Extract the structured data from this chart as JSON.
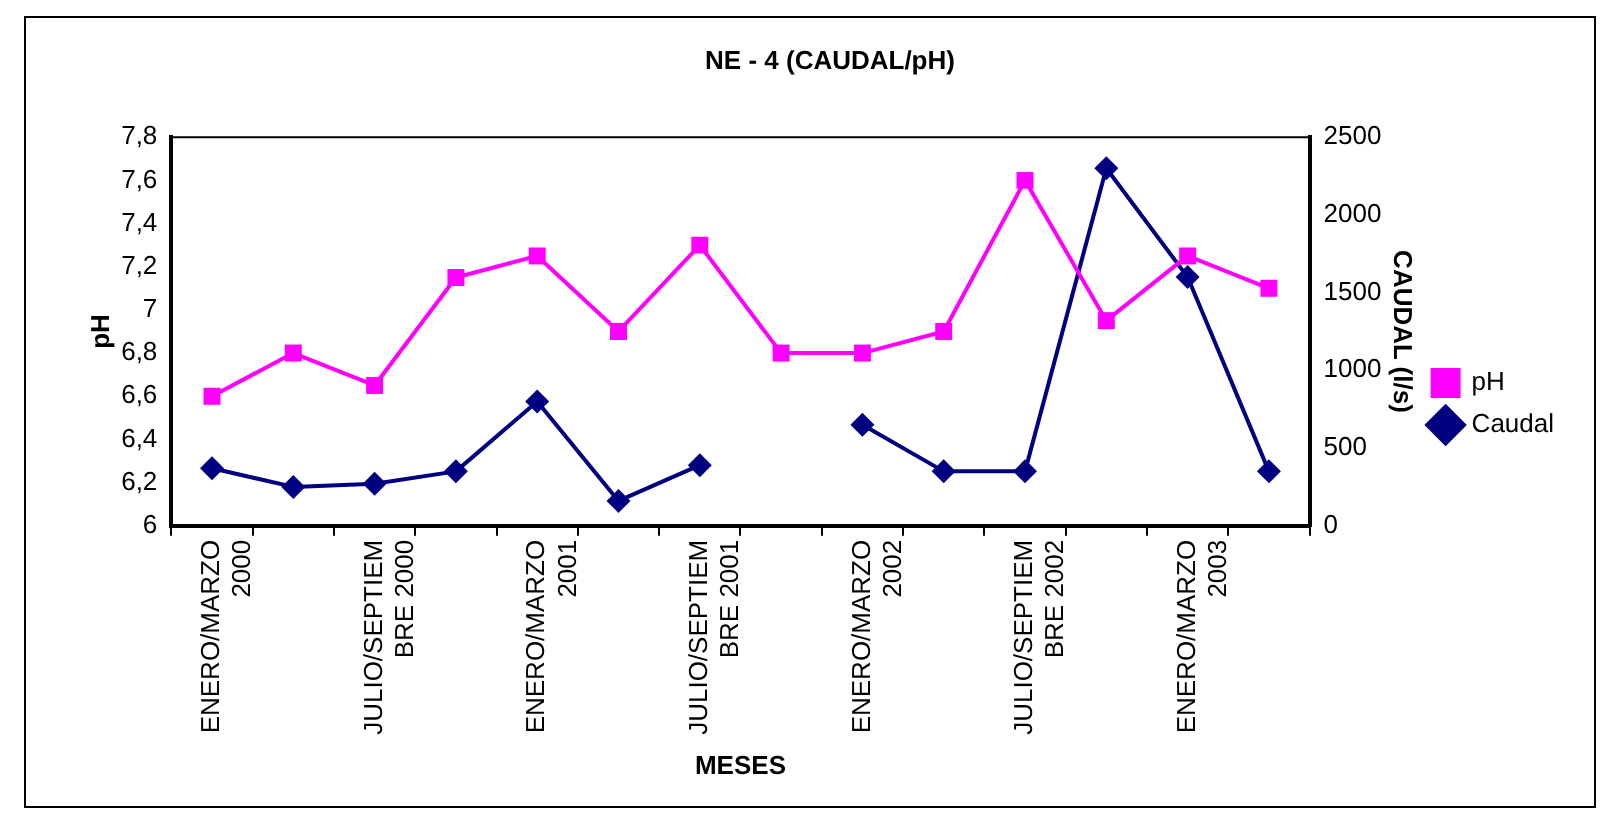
{
  "chart_data": {
    "type": "line",
    "title": "NE - 4 (CAUDAL/pH)",
    "xlabel": "MESES",
    "ylabel": "pH",
    "y2label": "CAUDAL (l/s)",
    "categories": [
      "ENERO/MARZO 2000",
      null,
      "JULIO/SEPTIEMBRE 2000",
      null,
      "ENERO/MARZO 2001",
      null,
      "JULIO/SEPTIEMBRE 2001",
      null,
      "ENERO/MARZO 2002",
      null,
      "JULIO/SEPTIEMBRE 2002",
      null,
      "ENERO/MARZO 2003",
      null
    ],
    "series": [
      {
        "name": "pH",
        "color": "#ff00ff",
        "marker": "square",
        "values": [
          6.6,
          6.8,
          6.65,
          7.15,
          7.25,
          6.9,
          7.3,
          6.8,
          6.8,
          6.9,
          7.6,
          6.95,
          7.25,
          7.1
        ]
      },
      {
        "name": "Caudal",
        "color": "#000080",
        "marker": "diamond",
        "axis": "y2",
        "values": [
          370,
          250,
          270,
          350,
          800,
          160,
          390,
          null,
          650,
          350,
          350,
          2300,
          1600,
          350
        ]
      }
    ],
    "ylim": [
      6,
      7.8
    ],
    "yticks": [
      6,
      {
        "value": 6.2,
        "label": "6,2"
      },
      {
        "value": 6.4,
        "label": "6,4"
      },
      {
        "value": 6.6,
        "label": "6,6"
      },
      {
        "value": 6.8,
        "label": "6,8"
      },
      7,
      {
        "value": 7.2,
        "label": "7,2"
      },
      {
        "value": 7.4,
        "label": "7,4"
      },
      {
        "value": 7.6,
        "label": "7,6"
      },
      {
        "value": 7.8,
        "label": "7,8"
      }
    ],
    "y2lim": [
      0,
      2500
    ],
    "y2ticks": [
      0,
      500,
      1000,
      1500,
      2000,
      2500
    ],
    "grid": false,
    "legend": "right"
  }
}
